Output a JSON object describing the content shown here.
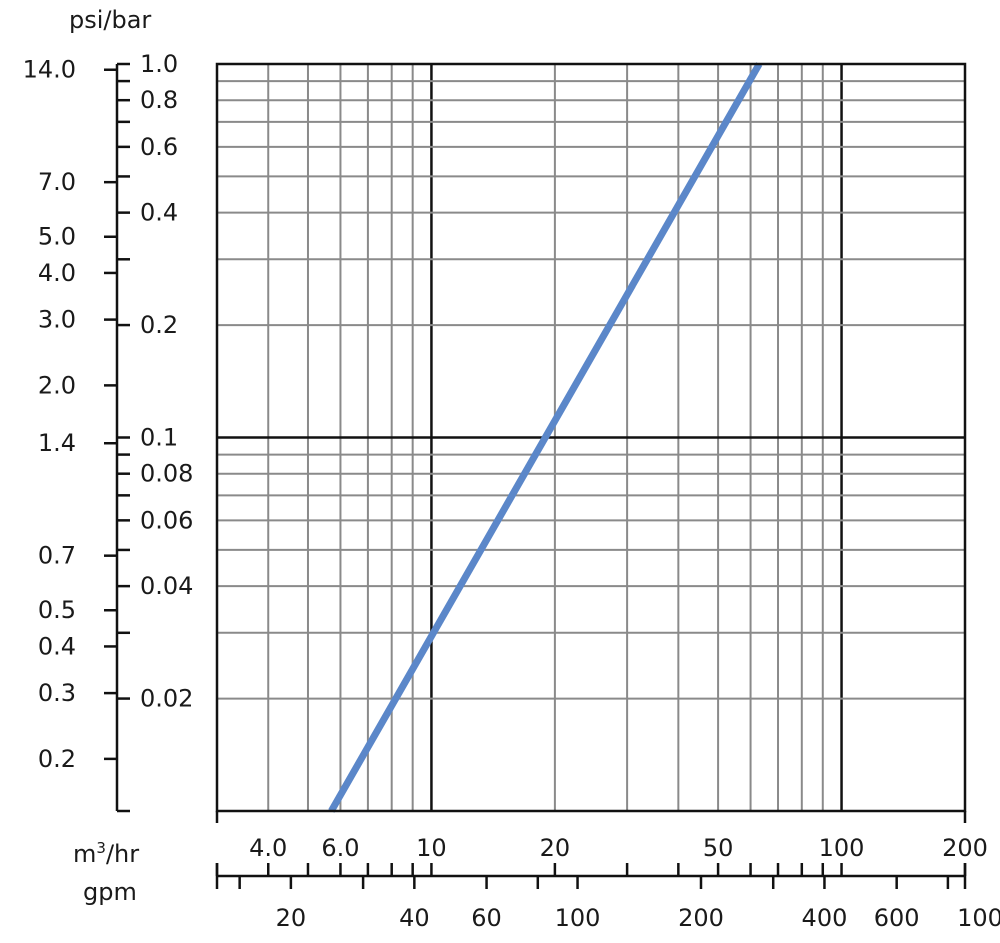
{
  "chart_data": {
    "type": "line",
    "title": "",
    "x_scale": "log",
    "y_scale": "log",
    "x_primary": {
      "unit_label": "m³/hr",
      "range": [
        3.0,
        200
      ],
      "tick_labels": [
        {
          "value": 4.0,
          "label": "4.0"
        },
        {
          "value": 6.0,
          "label": "6.0"
        },
        {
          "value": 10,
          "label": "10"
        },
        {
          "value": 20,
          "label": "20"
        },
        {
          "value": 50,
          "label": "50"
        },
        {
          "value": 100,
          "label": "100"
        },
        {
          "value": 200,
          "label": "200"
        }
      ]
    },
    "x_secondary": {
      "unit_label": "gpm",
      "tick_labels": [
        {
          "value": 20,
          "label": "20"
        },
        {
          "value": 40,
          "label": "40"
        },
        {
          "value": 60,
          "label": "60"
        },
        {
          "value": 100,
          "label": "100"
        },
        {
          "value": 200,
          "label": "200"
        },
        {
          "value": 400,
          "label": "400"
        },
        {
          "value": 600,
          "label": "600"
        },
        {
          "value": 1000,
          "label": "1000"
        }
      ]
    },
    "y_primary": {
      "unit_label": "bar",
      "range": [
        0.01,
        1.0
      ],
      "tick_labels": [
        {
          "value": 1.0,
          "label": "1.0"
        },
        {
          "value": 0.8,
          "label": "0.8"
        },
        {
          "value": 0.6,
          "label": "0.6"
        },
        {
          "value": 0.4,
          "label": "0.4"
        },
        {
          "value": 0.2,
          "label": "0.2"
        },
        {
          "value": 0.1,
          "label": "0.1"
        },
        {
          "value": 0.08,
          "label": "0.08"
        },
        {
          "value": 0.06,
          "label": "0.06"
        },
        {
          "value": 0.04,
          "label": "0.04"
        },
        {
          "value": 0.02,
          "label": "0.02"
        }
      ]
    },
    "y_secondary": {
      "unit_label": "psi/bar",
      "tick_labels": [
        {
          "value": 14.0,
          "label": "14.0"
        },
        {
          "value": 7.0,
          "label": "7.0"
        },
        {
          "value": 5.0,
          "label": "5.0"
        },
        {
          "value": 4.0,
          "label": "4.0"
        },
        {
          "value": 3.0,
          "label": "3.0"
        },
        {
          "value": 2.0,
          "label": "2.0"
        },
        {
          "value": 1.4,
          "label": "1.4"
        },
        {
          "value": 0.7,
          "label": "0.7"
        },
        {
          "value": 0.5,
          "label": "0.5"
        },
        {
          "value": 0.4,
          "label": "0.4"
        },
        {
          "value": 0.3,
          "label": "0.3"
        },
        {
          "value": 0.2,
          "label": "0.2"
        }
      ]
    },
    "series": [
      {
        "color": "#5b87c9",
        "x": [
          5.7,
          63
        ],
        "y": [
          0.01,
          1.0
        ]
      }
    ],
    "grid": true,
    "legend": "none"
  },
  "colors": {
    "grid_minor": "#8a8a8a",
    "grid_major": "#111111",
    "axis": "#111111",
    "series": "#5b87c9"
  }
}
